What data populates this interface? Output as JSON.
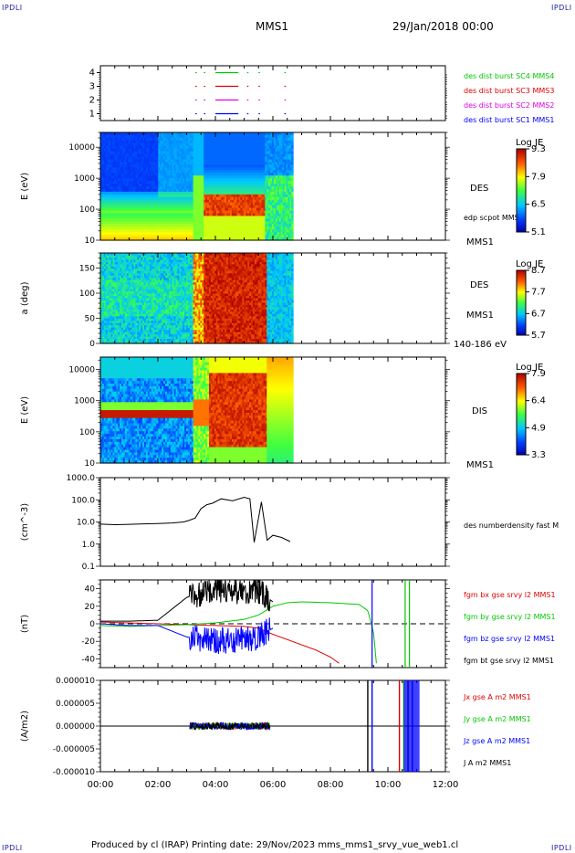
{
  "header": {
    "corner_tl": "IPDLI",
    "corner_tr": "IPDLI",
    "corner_bl": "IPDLI",
    "corner_br": "IPDLI",
    "spacecraft": "MMS1",
    "datetime": "29/Jan/2018 00:00"
  },
  "footer": {
    "text": "Produced by cl (IRAP)   Printing date: 29/Nov/2023   mms_mms1_srvy_vue_web1.cl"
  },
  "colors": {
    "mms1": "#0000ff",
    "mms2": "#e000e0",
    "mms3": "#e00000",
    "mms4": "#00c800"
  },
  "chart_data": [
    {
      "type": "scatter",
      "id": "burst-availability",
      "ytick_labels": [
        "1",
        "2",
        "3",
        "4"
      ],
      "ylim": [
        0.5,
        4.5
      ],
      "xlim": [
        0,
        12
      ],
      "legend": [
        {
          "label": "des dist burst SC1 MMS1",
          "color": "#0000ff",
          "level": 1
        },
        {
          "label": "des dist burst SC2 MMS2",
          "color": "#e000e0",
          "level": 2
        },
        {
          "label": "des dist burst SC3 MMS3",
          "color": "#e00000",
          "level": 3
        },
        {
          "label": "des dist burst SC4 MMS4",
          "color": "#00c800",
          "level": 4
        }
      ],
      "intervals": [
        [
          3.3,
          3.35
        ],
        [
          3.6,
          3.65
        ],
        [
          4.0,
          4.8
        ],
        [
          5.1,
          5.15
        ],
        [
          5.5,
          5.55
        ],
        [
          6.4,
          6.45
        ]
      ]
    },
    {
      "type": "heatmap",
      "id": "des-energy",
      "ylabel": "E (eV)",
      "yscale": "log",
      "ylim": [
        10,
        30000
      ],
      "ytick_labels": [
        "10",
        "100",
        "1000",
        "10000"
      ],
      "right_labels": [
        "DES",
        "edp scpot MMS1",
        "MMS1"
      ],
      "colorbar": {
        "title": "Log JE",
        "ticks": [
          "9.3",
          "7.9",
          "6.5",
          "5.1"
        ],
        "range": [
          5.1,
          9.3
        ]
      },
      "data_end_hour": 6.7
    },
    {
      "type": "heatmap",
      "id": "des-pitch",
      "ylabel": "a (deg)",
      "ylim": [
        0,
        180
      ],
      "ytick_labels": [
        "0",
        "50",
        "100",
        "150"
      ],
      "right_labels": [
        "DES",
        "MMS1",
        "140-186 eV"
      ],
      "colorbar": {
        "title": "Log JE",
        "ticks": [
          "8.7",
          "7.7",
          "6.7",
          "5.7"
        ],
        "range": [
          5.7,
          8.7
        ]
      },
      "data_end_hour": 6.7
    },
    {
      "type": "heatmap",
      "id": "dis-energy",
      "ylabel": "E (eV)",
      "yscale": "log",
      "ylim": [
        10,
        25000
      ],
      "ytick_labels": [
        "10",
        "100",
        "1000",
        "10000"
      ],
      "right_labels": [
        "DIS",
        "MMS1"
      ],
      "colorbar": {
        "title": "Log JE",
        "ticks": [
          "7.9",
          "6.4",
          "4.9",
          "3.3"
        ],
        "range": [
          3.3,
          7.9
        ]
      },
      "data_end_hour": 6.7
    },
    {
      "type": "line",
      "id": "density",
      "ylabel": "(cm^-3)",
      "yscale": "log",
      "ylim": [
        0.1,
        1000
      ],
      "ytick_labels": [
        "0.1",
        "1.0",
        "10.0",
        "100.0",
        "1000.0"
      ],
      "series": [
        {
          "name": "des numberdensity fast M",
          "color": "#000000",
          "x": [
            0,
            0.5,
            1.0,
            1.5,
            2.0,
            2.5,
            2.9,
            3.1,
            3.3,
            3.5,
            3.7,
            3.9,
            4.2,
            4.6,
            5.0,
            5.2,
            5.35,
            5.6,
            5.8,
            6.0,
            6.3,
            6.6
          ],
          "y": [
            8,
            7.5,
            7.8,
            8.2,
            8.5,
            9,
            10,
            12,
            15,
            40,
            60,
            70,
            110,
            90,
            130,
            110,
            1.2,
            80,
            1.5,
            2.5,
            2.0,
            1.3
          ]
        }
      ]
    },
    {
      "type": "line",
      "id": "magnetic-field",
      "ylabel": "(nT)",
      "ylim": [
        -50,
        50
      ],
      "ytick_labels": [
        "-40",
        "-20",
        "0",
        "20",
        "40"
      ],
      "series": [
        {
          "name": "fgm bx gse srvy l2 MMS1",
          "color": "#e00000",
          "x": [
            0,
            1,
            2,
            3,
            4,
            5,
            5.5,
            6.0,
            6.5,
            7.0,
            7.5,
            8.0,
            8.3
          ],
          "y": [
            2,
            1,
            0,
            -1,
            -2,
            -3,
            -5,
            -12,
            -18,
            -24,
            -30,
            -38,
            -45
          ]
        },
        {
          "name": "fgm by gse srvy l2 MMS1",
          "color": "#00c800",
          "x": [
            0,
            1,
            2,
            3,
            4,
            5,
            5.5,
            6.0,
            6.5,
            7.0,
            8.0,
            9.0,
            9.3,
            9.5,
            9.6
          ],
          "y": [
            -2,
            -3,
            -2,
            -1,
            1,
            5,
            10,
            20,
            24,
            25,
            24,
            22,
            15,
            -10,
            -45
          ]
        },
        {
          "name": "fgm bz gse srvy l2 MMS1",
          "color": "#0000ff",
          "x": [
            0,
            1,
            2,
            3,
            4,
            5,
            5.5,
            6.0
          ],
          "y": [
            0,
            -2,
            -2,
            -15,
            -20,
            -18,
            -15,
            -5
          ]
        },
        {
          "name": "fgm bt gse srvy l2 MMS1",
          "color": "#000000",
          "x": [
            0,
            1,
            2,
            3,
            4,
            5,
            5.5,
            6.0
          ],
          "y": [
            3,
            3,
            4,
            30,
            40,
            35,
            38,
            25
          ]
        }
      ]
    },
    {
      "type": "line",
      "id": "current-density",
      "ylabel": "(A/m2)",
      "ylim": [
        -1e-05,
        1e-05
      ],
      "ytick_labels": [
        "-0.000010",
        "-0.000005",
        "0.000000",
        "0.000005",
        "0.000010"
      ],
      "series": [
        {
          "name": "Jx gse A m2 MMS1",
          "color": "#e00000"
        },
        {
          "name": "Jy gse A m2 MMS1",
          "color": "#00c800"
        },
        {
          "name": "Jz gse A m2 MMS1",
          "color": "#0000ff"
        },
        {
          "name": "J A m2 MMS1",
          "color": "#000000"
        }
      ]
    }
  ],
  "xaxis": {
    "xlim": [
      0,
      12
    ],
    "tick_labels": [
      "00:00",
      "02:00",
      "04:00",
      "06:00",
      "08:00",
      "10:00",
      "12:00"
    ],
    "tick_values": [
      0,
      2,
      4,
      6,
      8,
      10,
      12
    ]
  }
}
